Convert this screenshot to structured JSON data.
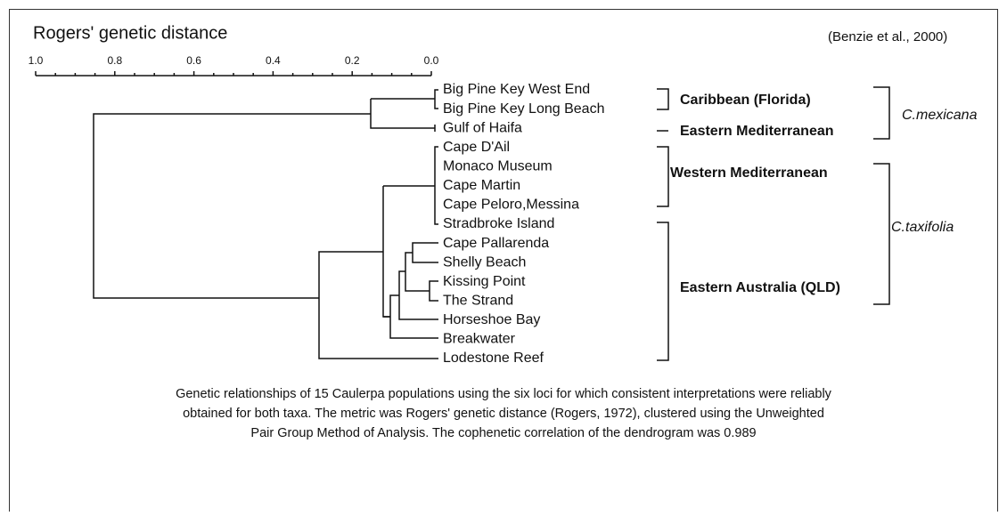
{
  "title": "Rogers' genetic distance",
  "citation": "(Benzie et al., 2000)",
  "axis": {
    "ticks": [
      "1.0",
      "0.8",
      "0.6",
      "0.4",
      "0.2",
      "0.0"
    ]
  },
  "leaves": [
    "Big Pine Key West End",
    "Big Pine Key Long Beach",
    "Gulf of Haifa",
    "Cape D'Ail",
    "Monaco Museum",
    "Cape Martin",
    "Cape Peloro,Messina",
    "Stradbroke Island",
    "Cape Pallarenda",
    "Shelly Beach",
    "Kissing Point",
    "The Strand",
    "Horseshoe Bay",
    "Breakwater",
    "Lodestone Reef"
  ],
  "groups": [
    "Caribbean (Florida)",
    "Eastern Mediterranean",
    "Western Mediterranean",
    "Eastern Australia (QLD)"
  ],
  "species": [
    "C.mexicana",
    "C.taxifolia"
  ],
  "caption": [
    "Genetic relationships of 15 Caulerpa populations using the six loci for which consistent interpretations were reliably",
    "obtained for both taxa. The metric was Rogers' genetic distance (Rogers, 1972), clustered using the Unweighted",
    "Pair Group Method of Analysis. The cophenetic correlation of the dendrogram was 0.989"
  ]
}
